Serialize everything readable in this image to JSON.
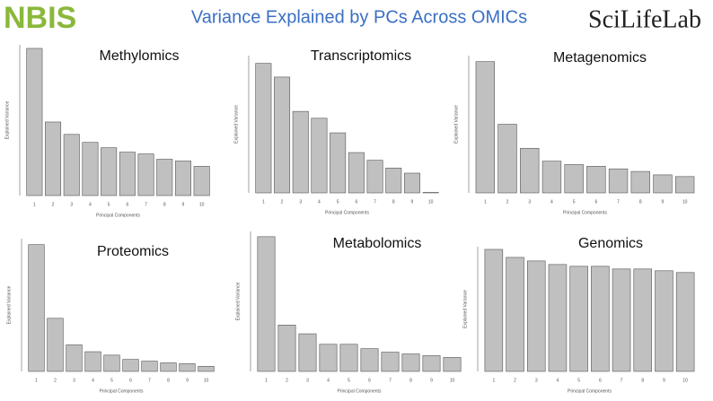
{
  "header": {
    "title": "Variance Explained by PCs Across OMICs",
    "logo_left": "NBIS",
    "logo_right": "SciLifeLab"
  },
  "chart_data": [
    {
      "type": "bar",
      "title": "Methylomics",
      "xlabel": "Principal Components",
      "ylabel": "Explained Variance",
      "categories": [
        "1",
        "2",
        "3",
        "4",
        "5",
        "6",
        "7",
        "8",
        "9",
        "10"
      ],
      "values": [
        166,
        83,
        69,
        60,
        54,
        49,
        47,
        41,
        39,
        33
      ],
      "ylim": [
        0,
        170
      ],
      "color": "#c0c0c0"
    },
    {
      "type": "bar",
      "title": "Transcriptomics",
      "xlabel": "Principal Components",
      "ylabel": "Explained Variance",
      "categories": [
        "1",
        "2",
        "3",
        "4",
        "5",
        "6",
        "7",
        "8",
        "9",
        "10"
      ],
      "values": [
        151,
        135,
        95,
        87,
        70,
        47,
        38,
        29,
        23,
        0.5
      ],
      "ylim": [
        0,
        160
      ],
      "color": "#c0c0c0"
    },
    {
      "type": "bar",
      "title": "Metagenomics",
      "xlabel": "Principal Components",
      "ylabel": "Explained Variance",
      "categories": [
        "1",
        "2",
        "3",
        "4",
        "5",
        "6",
        "7",
        "8",
        "9",
        "10"
      ],
      "values": [
        153,
        80,
        52,
        37,
        33,
        31,
        28,
        25,
        21,
        19
      ],
      "ylim": [
        0,
        160
      ],
      "color": "#c0c0c0"
    },
    {
      "type": "bar",
      "title": "Proteomics",
      "xlabel": "Principal Components",
      "ylabel": "Explained Variance",
      "categories": [
        "1",
        "2",
        "3",
        "4",
        "5",
        "6",
        "7",
        "8",
        "9",
        "10"
      ],
      "values": [
        148,
        62,
        31,
        23,
        19,
        14,
        12,
        10,
        9,
        6
      ],
      "ylim": [
        0,
        155
      ],
      "color": "#c0c0c0"
    },
    {
      "type": "bar",
      "title": "Metabolomics",
      "xlabel": "Principal Components",
      "ylabel": "Explained Variance",
      "categories": [
        "1",
        "2",
        "3",
        "4",
        "5",
        "6",
        "7",
        "8",
        "9",
        "10"
      ],
      "values": [
        154,
        53,
        43,
        31,
        31,
        26,
        22,
        20,
        18,
        16
      ],
      "ylim": [
        0,
        160
      ],
      "color": "#c0c0c0"
    },
    {
      "type": "bar",
      "title": "Genomics",
      "xlabel": "Principal Components",
      "ylabel": "Explained Variance",
      "categories": [
        "1",
        "2",
        "3",
        "4",
        "5",
        "6",
        "7",
        "8",
        "9",
        "10"
      ],
      "values": [
        137,
        128,
        124,
        120,
        118,
        118,
        115,
        115,
        113,
        111
      ],
      "ylim": [
        0,
        140
      ],
      "color": "#c0c0c0"
    }
  ]
}
